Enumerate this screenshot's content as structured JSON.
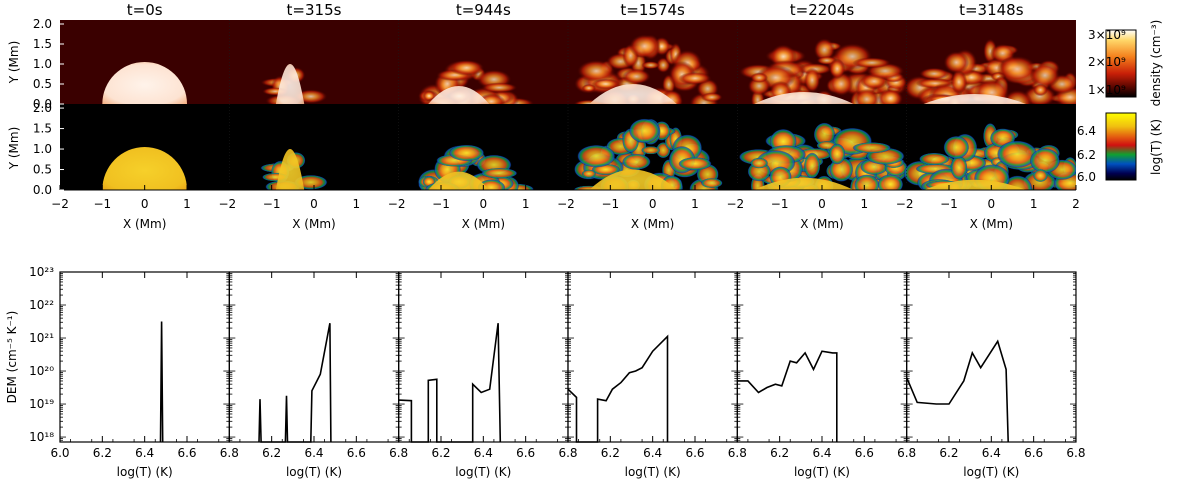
{
  "time_titles": [
    "t=0s",
    "t=315s",
    "t=944s",
    "t=1574s",
    "t=2204s",
    "t=3148s"
  ],
  "map_axes": {
    "xlabel": "X (Mm)",
    "ylabel": "Y (Mm)",
    "x_ticks": [
      "−2",
      "−1",
      "0",
      "1",
      "2"
    ],
    "y_ticks": [
      "2.0",
      "1.5",
      "1.0",
      "0.5",
      "0.0"
    ],
    "xlim": [
      -2,
      2
    ],
    "ylim": [
      0,
      2.1
    ]
  },
  "colorbars": {
    "density": {
      "label": "density (cm⁻³)",
      "ticks": [
        "3×10⁹",
        "2×10⁹",
        "1×10⁹"
      ],
      "colors": [
        "#ffffff",
        "#ffd86a",
        "#f4801c",
        "#c81f08",
        "#5a0600",
        "#000000"
      ]
    },
    "temperature": {
      "label": "log(T) (K)",
      "ticks": [
        "6.4",
        "6.2",
        "6.0"
      ],
      "colors": [
        "#ffff00",
        "#f0c010",
        "#e46010",
        "#d01010",
        "#10a030",
        "#0050c0",
        "#000050",
        "#000000"
      ]
    }
  },
  "colors": {
    "prominence_core_density": "#fde9dd",
    "corona_density": "#3a0000",
    "prominence_core_temperature": "#f2c222",
    "corona_temperature": "#000000"
  },
  "chart_data": {
    "type": "line",
    "xlabel": "log(T)  (K)",
    "ylabel": "DEM (cm⁻⁵ K⁻¹)",
    "xlim": [
      6.0,
      6.8
    ],
    "ylim_log10": [
      17.85,
      23.0
    ],
    "x_ticks": [
      "6.0",
      "6.2",
      "6.4",
      "6.6",
      "6.8"
    ],
    "y_ticks": [
      "10¹⁸",
      "10¹⁹",
      "10²⁰",
      "10²¹",
      "10²²",
      "10²³"
    ],
    "panels": [
      {
        "title": "t=0s",
        "log10_dem_points": [
          [
            6.475,
            17.85
          ],
          [
            6.48,
            21.5
          ],
          [
            6.485,
            17.85
          ]
        ]
      },
      {
        "title": "t=315s",
        "log10_dem_points": [
          [
            6.14,
            17.85
          ],
          [
            6.145,
            19.15
          ],
          [
            6.15,
            17.85
          ],
          [
            6.265,
            17.85
          ],
          [
            6.27,
            19.25
          ],
          [
            6.275,
            17.85
          ],
          [
            6.385,
            17.85
          ],
          [
            6.39,
            19.4
          ],
          [
            6.43,
            19.9
          ],
          [
            6.475,
            21.45
          ],
          [
            6.48,
            17.85
          ]
        ]
      },
      {
        "title": "t=944s",
        "log10_dem_points": [
          [
            6.0,
            19.12
          ],
          [
            6.06,
            19.1
          ],
          [
            6.06,
            17.85
          ],
          [
            6.14,
            17.85
          ],
          [
            6.14,
            19.72
          ],
          [
            6.18,
            19.75
          ],
          [
            6.18,
            17.85
          ],
          [
            6.35,
            17.85
          ],
          [
            6.35,
            19.6
          ],
          [
            6.39,
            19.35
          ],
          [
            6.43,
            19.45
          ],
          [
            6.47,
            21.45
          ],
          [
            6.48,
            17.85
          ]
        ]
      },
      {
        "title": "t=1574s",
        "log10_dem_points": [
          [
            6.0,
            19.45
          ],
          [
            6.04,
            19.2
          ],
          [
            6.04,
            17.85
          ],
          [
            6.14,
            17.85
          ],
          [
            6.14,
            19.15
          ],
          [
            6.18,
            19.1
          ],
          [
            6.21,
            19.45
          ],
          [
            6.25,
            19.65
          ],
          [
            6.29,
            19.95
          ],
          [
            6.32,
            20.0
          ],
          [
            6.35,
            20.1
          ],
          [
            6.4,
            20.6
          ],
          [
            6.47,
            21.05
          ],
          [
            6.47,
            17.85
          ]
        ]
      },
      {
        "title": "t=2204s",
        "log10_dem_points": [
          [
            6.0,
            19.7
          ],
          [
            6.05,
            19.7
          ],
          [
            6.1,
            19.35
          ],
          [
            6.14,
            19.5
          ],
          [
            6.18,
            19.6
          ],
          [
            6.21,
            19.55
          ],
          [
            6.25,
            20.3
          ],
          [
            6.28,
            20.25
          ],
          [
            6.32,
            20.55
          ],
          [
            6.36,
            20.05
          ],
          [
            6.4,
            20.6
          ],
          [
            6.45,
            20.55
          ],
          [
            6.47,
            20.55
          ],
          [
            6.47,
            17.85
          ]
        ]
      },
      {
        "title": "t=3148s",
        "log10_dem_points": [
          [
            6.0,
            19.8
          ],
          [
            6.05,
            19.05
          ],
          [
            6.14,
            19.0
          ],
          [
            6.2,
            19.0
          ],
          [
            6.27,
            19.7
          ],
          [
            6.31,
            20.55
          ],
          [
            6.35,
            20.1
          ],
          [
            6.43,
            20.9
          ],
          [
            6.47,
            20.05
          ],
          [
            6.48,
            17.85
          ]
        ]
      }
    ]
  }
}
